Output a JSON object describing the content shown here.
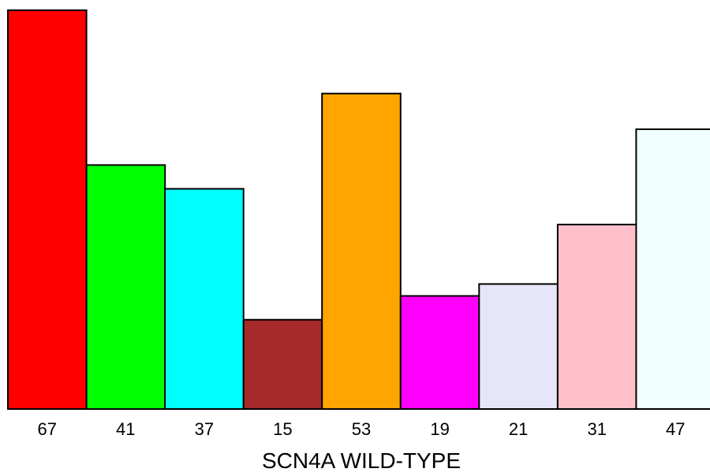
{
  "chart_data": {
    "type": "bar",
    "title": "",
    "xlabel": "SCN4A WILD-TYPE",
    "ylabel": "",
    "categories": [
      "67",
      "41",
      "37",
      "15",
      "53",
      "19",
      "21",
      "31",
      "47"
    ],
    "values": [
      67,
      41,
      37,
      15,
      53,
      19,
      21,
      31,
      47
    ],
    "colors": [
      "#ff0000",
      "#00ff00",
      "#00ffff",
      "#a52a2a",
      "#ffa500",
      "#ff00ff",
      "#e6e6fa",
      "#ffc0cb",
      "#f0ffff"
    ],
    "ylim": [
      0,
      67
    ],
    "grid": false,
    "legend": "none"
  }
}
